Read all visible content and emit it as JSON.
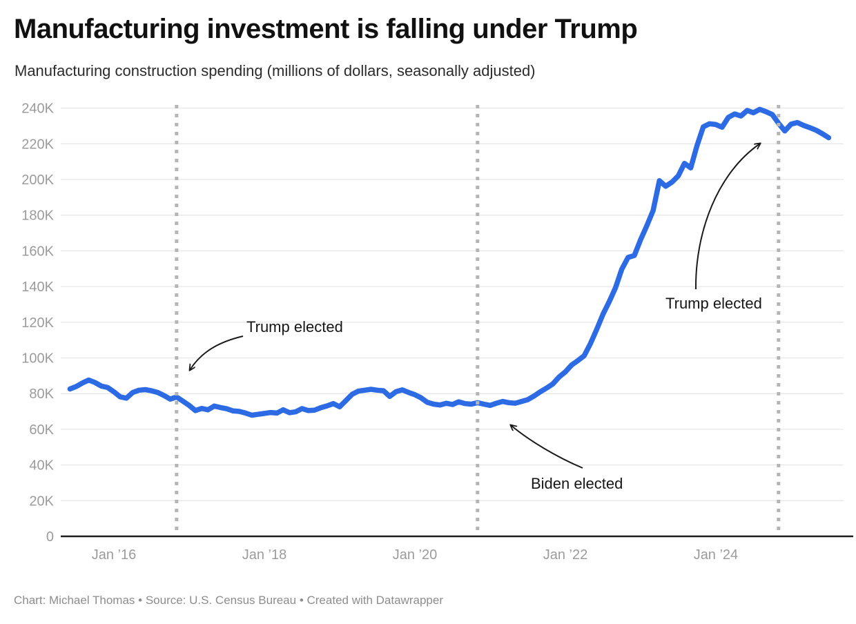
{
  "footer": {
    "credit": "Chart: Michael Thomas • Source: U.S. Census Bureau • Created with Datawrapper"
  },
  "chart_data": {
    "type": "line",
    "title": "Manufacturing investment is falling under Trump",
    "subtitle": "Manufacturing construction spending (millions of dollars, seasonally adjusted)",
    "unit": "millions of dollars",
    "frequency": "monthly",
    "start_month": "2015-06",
    "ylim": [
      0,
      240000
    ],
    "grid": true,
    "line_color": "#2d6be5",
    "series": [
      {
        "name": "Manufacturing construction spending",
        "values": [
          82600,
          84000,
          86000,
          87600,
          86200,
          84200,
          83400,
          81000,
          78200,
          77400,
          80600,
          81900,
          82200,
          81600,
          80600,
          78900,
          76900,
          78100,
          75800,
          73400,
          70500,
          71700,
          70900,
          73000,
          72200,
          71500,
          70300,
          70000,
          69100,
          67900,
          68400,
          68900,
          69400,
          69100,
          70900,
          69300,
          69800,
          71600,
          70500,
          70700,
          72100,
          73100,
          74400,
          72600,
          76100,
          79600,
          81400,
          81900,
          82400,
          81900,
          81600,
          78400,
          81100,
          82100,
          80600,
          79400,
          77600,
          75100,
          74100,
          73600,
          74600,
          73900,
          75400,
          74400,
          74100,
          74900,
          74100,
          73400,
          74600,
          75600,
          74900,
          74600,
          75600,
          76600,
          78600,
          81000,
          83100,
          85400,
          89300,
          92200,
          96000,
          98500,
          101200,
          108000,
          116000,
          124500,
          131500,
          139300,
          149700,
          156300,
          157400,
          166300,
          174100,
          182600,
          199300,
          196200,
          198500,
          202000,
          209000,
          206500,
          219000,
          229500,
          231200,
          230800,
          229300,
          234800,
          236700,
          235600,
          238700,
          237400,
          239300,
          238000,
          236400,
          231500,
          227200,
          231000,
          231900,
          230300,
          229000,
          227600,
          225600,
          223400
        ]
      }
    ],
    "y_axis": {
      "ticks": [
        {
          "value": 0,
          "label": "0"
        },
        {
          "value": 20000,
          "label": "20K"
        },
        {
          "value": 40000,
          "label": "40K"
        },
        {
          "value": 60000,
          "label": "60K"
        },
        {
          "value": 80000,
          "label": "80K"
        },
        {
          "value": 100000,
          "label": "100K"
        },
        {
          "value": 120000,
          "label": "120K"
        },
        {
          "value": 140000,
          "label": "140K"
        },
        {
          "value": 160000,
          "label": "160K"
        },
        {
          "value": 180000,
          "label": "180K"
        },
        {
          "value": 200000,
          "label": "200K"
        },
        {
          "value": 220000,
          "label": "220K"
        },
        {
          "value": 240000,
          "label": "240K"
        }
      ]
    },
    "x_axis": {
      "ticks": [
        {
          "label": "Jan ’16",
          "month_index": 7
        },
        {
          "label": "Jan ’18",
          "month_index": 31
        },
        {
          "label": "Jan ’20",
          "month_index": 55
        },
        {
          "label": "Jan ’22",
          "month_index": 79
        },
        {
          "label": "Jan ’24",
          "month_index": 103
        }
      ]
    },
    "events": [
      {
        "label": "Trump elected",
        "month_index": 17,
        "date": "Nov 2016"
      },
      {
        "label": "Biden elected",
        "month_index": 65,
        "date": "Nov 2020"
      },
      {
        "label": "Trump elected",
        "month_index": 113,
        "date": "Nov 2024"
      }
    ],
    "event_line_color": "#b5b5b5",
    "annotation_color": "#161616"
  }
}
